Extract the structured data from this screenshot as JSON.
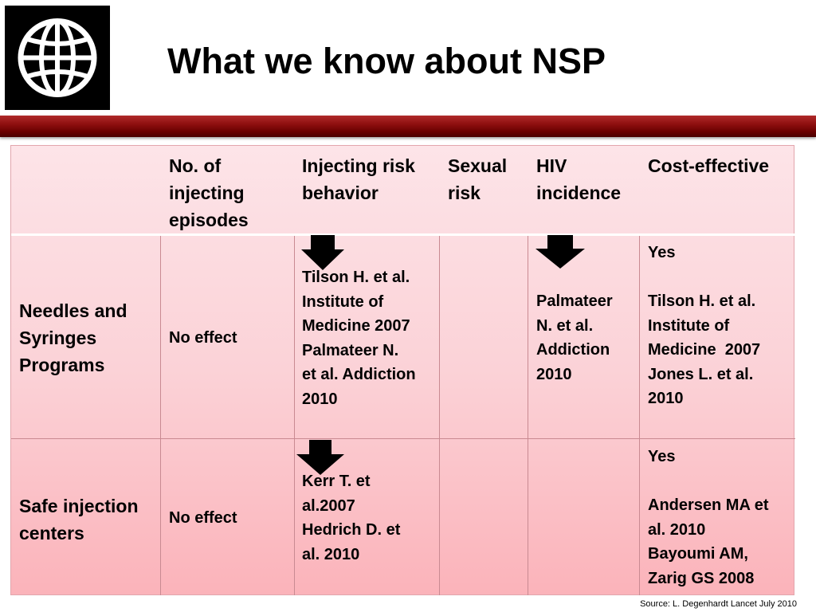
{
  "logo": {
    "icon": "globe-icon",
    "color": "#000000"
  },
  "title": "What we know about NSP",
  "colors": {
    "band": "#8e0f0f",
    "table_top": "#fde4e8",
    "table_bottom": "#fbb3ba"
  },
  "table": {
    "headers": [
      "",
      "No. of injecting episodes",
      "Injecting risk behavior",
      "Sexual risk",
      "HIV incidence",
      "Cost-effective"
    ],
    "rows": [
      {
        "label": "Needles and Syringes Programs",
        "episodes": "No effect",
        "injecting_arrow": "down-arrow-icon",
        "injecting": [
          "Tilson H. et al.",
          "Institute of",
          "Medicine 2007",
          "Palmateer N.",
          "et al. Addiction",
          "2010"
        ],
        "sexual": "",
        "hiv_arrow": "down-arrow-icon",
        "hiv": [
          "Palmateer",
          "N. et al.",
          "Addiction",
          "2010"
        ],
        "cost_answer": "Yes",
        "cost": [
          "Tilson H. et al.",
          "Institute of",
          "Medicine  2007",
          "Jones L. et al.",
          "2010"
        ]
      },
      {
        "label": "Safe injection centers",
        "episodes": "No effect",
        "injecting_arrow": "down-arrow-icon",
        "injecting": [
          "Kerr T. et",
          "al.2007",
          "Hedrich D. et",
          "al. 2010"
        ],
        "sexual": "",
        "hiv": [],
        "cost_answer": "Yes",
        "cost": [
          "Andersen MA et",
          "al. 2010",
          "Bayoumi AM,",
          "Zarig GS 2008"
        ]
      }
    ]
  },
  "source": "Source: L. Degenhardt Lancet July 2010"
}
